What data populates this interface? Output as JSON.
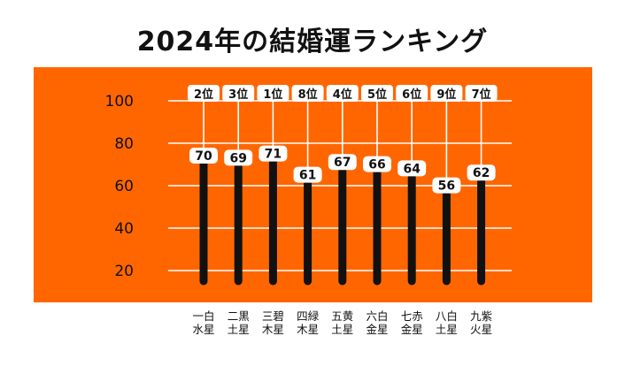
{
  "colors": {
    "panel": "#ff6600",
    "bar": "#111111",
    "grid": "#ffffff",
    "label_bg": "#ffffff"
  },
  "chart_data": {
    "type": "bar",
    "title": "2024年の結婚運ランキング",
    "categories": [
      [
        "一白",
        "水星"
      ],
      [
        "二黒",
        "土星"
      ],
      [
        "三碧",
        "木星"
      ],
      [
        "四緑",
        "木星"
      ],
      [
        "五黄",
        "土星"
      ],
      [
        "六白",
        "金星"
      ],
      [
        "七赤",
        "金星"
      ],
      [
        "八白",
        "土星"
      ],
      [
        "九紫",
        "火星"
      ]
    ],
    "values": [
      70,
      69,
      71,
      61,
      67,
      66,
      64,
      56,
      62
    ],
    "ranks": [
      "2位",
      "3位",
      "1位",
      "8位",
      "4位",
      "5位",
      "6位",
      "9位",
      "7位"
    ],
    "yticks": [
      20,
      40,
      60,
      80,
      100
    ],
    "ylim": [
      15,
      105
    ],
    "grid": true
  }
}
